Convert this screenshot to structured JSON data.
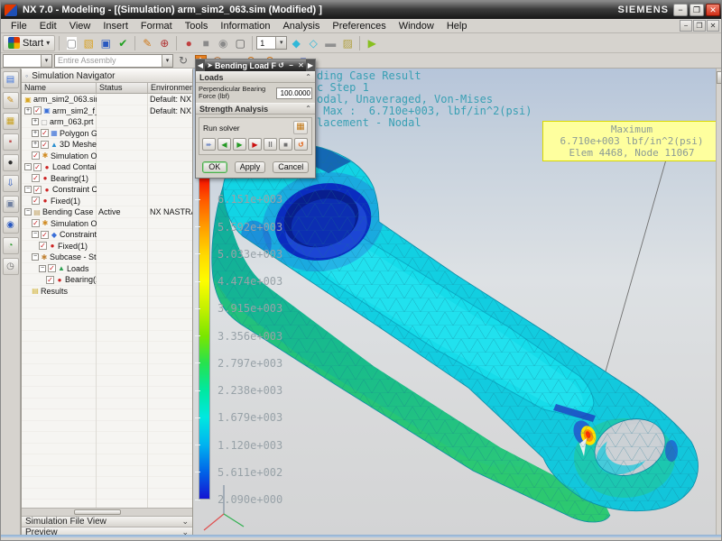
{
  "window": {
    "title": "NX 7.0 - Modeling - [(Simulation) arm_sim2_063.sim (Modified) ]",
    "brand": "SIEMENS",
    "buttons": {
      "minimize": "-",
      "restore": "❏",
      "close": "x"
    }
  },
  "menu": {
    "items": [
      "File",
      "Edit",
      "View",
      "Insert",
      "Format",
      "Tools",
      "Information",
      "Analysis",
      "Preferences",
      "Window",
      "Help"
    ]
  },
  "toolbar": {
    "start_label": "Start",
    "layer_combo_value": "1",
    "filter_combo_value": "",
    "scope_combo_value": "Entire Assembly",
    "row1_icons": [
      "new-file",
      "open",
      "save",
      "finish-sketch",
      "sep",
      "direct-sketch",
      "datum-csys",
      "sep",
      "sphere",
      "solid-cube",
      "face-analysis",
      "window-rect",
      "sep",
      "combo-layer",
      "shaded-view",
      "wireframe-view",
      "cylinder",
      "section-view",
      "sep",
      "replay"
    ],
    "row2_icons": [
      "refresh",
      "add-select",
      "snap-point",
      "ball",
      "orbit-left",
      "orbit-right",
      "rect-select",
      "cube"
    ]
  },
  "resource_bar": {
    "tabs": [
      "simulation-navigator",
      "assembly-navigator",
      "part-navigator",
      "reuse-library",
      "xy-function",
      "post-navigator",
      "operation-navigator",
      "web-browser",
      "history",
      "roles"
    ]
  },
  "navigator": {
    "title": "Simulation Navigator",
    "columns": [
      "Name",
      "Status",
      "Environment"
    ],
    "rows": [
      {
        "label": "arm_sim2_063.sim",
        "status": "",
        "env": "Default: NX NASTRAN",
        "indent": 0,
        "exp": "",
        "check": false,
        "icon": "sim-file",
        "glyph": "▣"
      },
      {
        "label": "arm_sim2_f_063...",
        "status": "",
        "env": "Default: NX NASTRAN",
        "indent": 0,
        "exp": "plus",
        "check": true,
        "icon": "fem-part",
        "glyph": "▣"
      },
      {
        "label": "arm_063.prt",
        "status": "",
        "env": "",
        "indent": 1,
        "exp": "plus",
        "check": false,
        "icon": "part",
        "glyph": "▢"
      },
      {
        "label": "Polygon Geo...",
        "status": "",
        "env": "",
        "indent": 1,
        "exp": "plus",
        "check": true,
        "icon": "polygon-geometry",
        "glyph": "▦"
      },
      {
        "label": "3D Meshes",
        "status": "",
        "env": "",
        "indent": 1,
        "exp": "plus",
        "check": true,
        "icon": "mesh-3d",
        "glyph": "▲"
      },
      {
        "label": "Simulation Objec...",
        "status": "",
        "env": "",
        "indent": 1,
        "exp": "",
        "check": true,
        "icon": "sim-object",
        "glyph": "✱"
      },
      {
        "label": "Load Container",
        "status": "",
        "env": "",
        "indent": 0,
        "exp": "minus",
        "check": true,
        "icon": "load",
        "glyph": "●"
      },
      {
        "label": "Bearing(1)",
        "status": "",
        "env": "",
        "indent": 1,
        "exp": "",
        "check": true,
        "icon": "load",
        "glyph": "●"
      },
      {
        "label": "Constraint Conta...",
        "status": "",
        "env": "",
        "indent": 0,
        "exp": "minus",
        "check": true,
        "icon": "constraint",
        "glyph": "●"
      },
      {
        "label": "Fixed(1)",
        "status": "",
        "env": "",
        "indent": 1,
        "exp": "",
        "check": true,
        "icon": "constraint",
        "glyph": "●"
      },
      {
        "label": "Bending Case",
        "status": "Active",
        "env": "NX NASTRAN DESIGN",
        "indent": 0,
        "exp": "minus",
        "check": false,
        "icon": "solution",
        "glyph": "▤"
      },
      {
        "label": "Simulation O...",
        "status": "",
        "env": "",
        "indent": 1,
        "exp": "",
        "check": true,
        "icon": "sim-object",
        "glyph": "✱"
      },
      {
        "label": "Constraints",
        "status": "",
        "env": "",
        "indent": 1,
        "exp": "minus",
        "check": true,
        "icon": "constraints-group",
        "glyph": "◆"
      },
      {
        "label": "Fixed(1)",
        "status": "",
        "env": "",
        "indent": 2,
        "exp": "",
        "check": true,
        "icon": "constraint",
        "glyph": "●"
      },
      {
        "label": "Subcase - Static ...",
        "status": "",
        "env": "",
        "indent": 1,
        "exp": "minus",
        "check": false,
        "icon": "subcase",
        "glyph": "✱"
      },
      {
        "label": "Loads",
        "status": "",
        "env": "",
        "indent": 2,
        "exp": "minus",
        "check": true,
        "icon": "loads-group",
        "glyph": "▲"
      },
      {
        "label": "Bearing(1)",
        "status": "",
        "env": "",
        "indent": 3,
        "exp": "",
        "check": true,
        "icon": "load",
        "glyph": "●"
      },
      {
        "label": "Results",
        "status": "",
        "env": "",
        "indent": 1,
        "exp": "",
        "check": false,
        "icon": "results",
        "glyph": "▤"
      }
    ],
    "bottom_bars": [
      {
        "label": "Simulation File View"
      },
      {
        "label": "Preview"
      }
    ]
  },
  "dialog": {
    "title": "Bending Load FEA",
    "loads_header": "Loads",
    "force_label": "Perpendicular Bearing Force (lbf)",
    "force_value": "100.0000",
    "strength_header": "Strength Analysis",
    "run_solver_label": "Run solver",
    "solver_buttons": [
      "skip-to-result",
      "step-back",
      "step-forward",
      "solve",
      "pause",
      "stop",
      "reset"
    ],
    "ok_label": "OK",
    "apply_label": "Apply",
    "cancel_label": "Cancel"
  },
  "viewport": {
    "header_lines": [
      "Bending Case Result",
      "Static Step 1",
      "Stress - Nodal, Unaveraged, Von-Mises",
      "Min :  2.090e+000, Max :  6.710e+003, lbf/in^2(psi)",
      "Deformation : Displacement - Nodal"
    ],
    "annotation_color": "#3aa0b4",
    "callout": {
      "lines": [
        "Maximum",
        "6.710e+003 lbf/in^2(psi)",
        "Elem 4468, Node 11067"
      ],
      "bg": "#feff9e",
      "text_color": "#8b9a96"
    },
    "legend": {
      "labels": [
        "6.710e+003",
        "6.151e+003",
        "5.592e+003",
        "5.033e+003",
        "4.474e+003",
        "3.915e+003",
        "3.356e+003",
        "2.797e+003",
        "2.238e+003",
        "1.679e+003",
        "1.120e+003",
        "5.611e+002",
        "2.090e+000"
      ],
      "colors": [
        "#f40000",
        "#ff5a00",
        "#ff9e00",
        "#ffd800",
        "#fdfd00",
        "#c3f000",
        "#7ae600",
        "#27e24e",
        "#00e8a0",
        "#00e8e0",
        "#00b4f0",
        "#0064e8",
        "#1414d2"
      ],
      "label_color": "#98a2a8"
    }
  }
}
